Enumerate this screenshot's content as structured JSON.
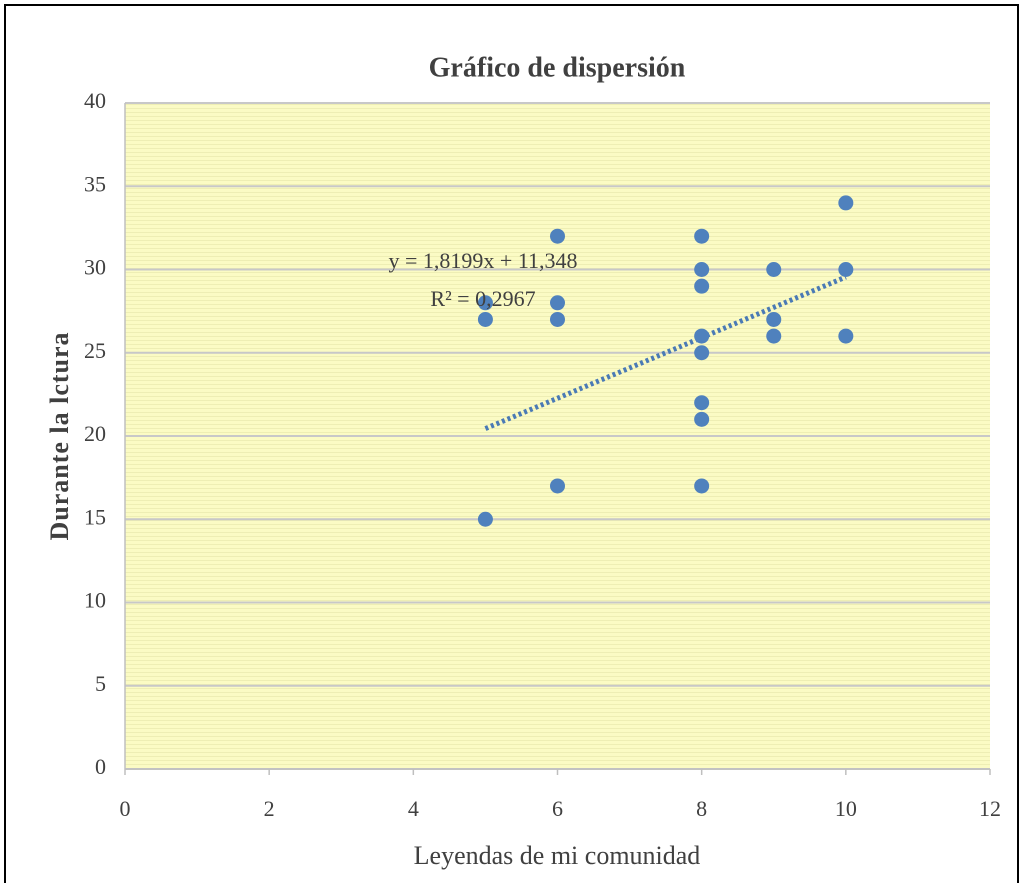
{
  "chart_data": {
    "type": "scatter",
    "title": "Gráfico de dispersión",
    "x_label": "Leyendas de mi comunidad",
    "y_label": "Durante la lctura",
    "x": [
      5,
      5,
      5,
      6,
      6,
      6,
      6,
      8,
      8,
      8,
      8,
      8,
      8,
      8,
      8,
      9,
      9,
      9,
      10,
      10,
      10
    ],
    "y": [
      15,
      27,
      28,
      32,
      28,
      27,
      17,
      32,
      30,
      29,
      26,
      25,
      22,
      21,
      17,
      30,
      27,
      26,
      34,
      30,
      26
    ],
    "color": "#4f81bd",
    "trendline": {
      "slope": 1.8199,
      "intercept": 11.348,
      "color": "#4a7ab5"
    },
    "annotations": [
      "y = 1,8199x  + 11,348",
      "R² = 0,2967"
    ],
    "xlim": [
      0,
      12
    ],
    "xticks": [
      0,
      2,
      4,
      6,
      8,
      10,
      12
    ],
    "ylim": [
      0,
      40
    ],
    "yticks": [
      0,
      5,
      10,
      15,
      20,
      25,
      30,
      35,
      40
    ],
    "grid": true
  }
}
